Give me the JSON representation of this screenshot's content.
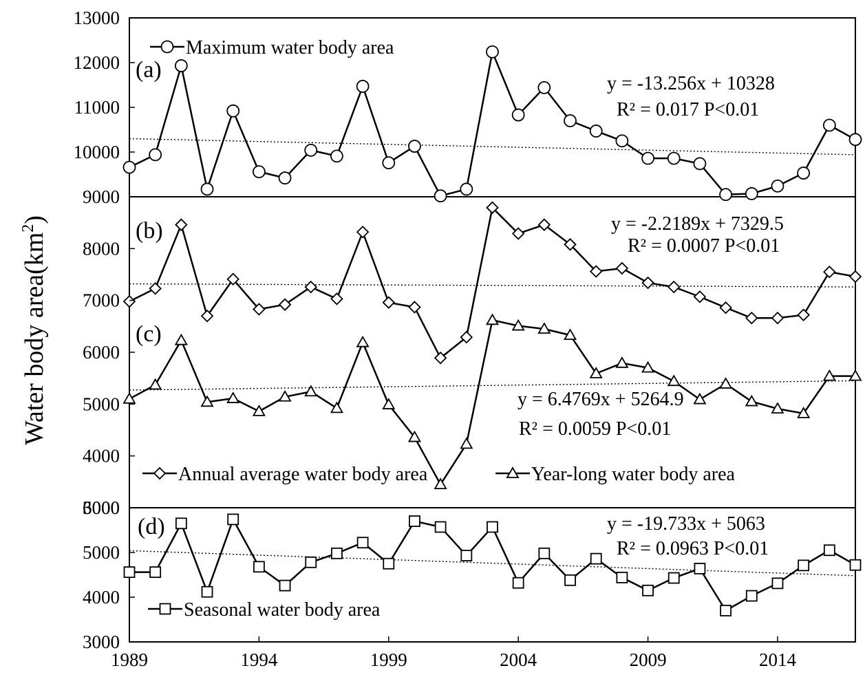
{
  "chart_data": {
    "type": "line",
    "ylabel": "Water body area(km",
    "ylabel_sup": "2",
    "ylabel_close": ")",
    "x_range": [
      1989,
      2017
    ],
    "x_ticks": [
      1989,
      1994,
      1999,
      2004,
      2009,
      2014
    ],
    "x": [
      1989,
      1990,
      1991,
      1992,
      1993,
      1994,
      1995,
      1996,
      1997,
      1998,
      1999,
      2000,
      2001,
      2002,
      2003,
      2004,
      2005,
      2006,
      2007,
      2008,
      2009,
      2010,
      2011,
      2012,
      2013,
      2014,
      2015,
      2016,
      2017
    ],
    "panels": [
      {
        "label": "(a)",
        "ylim": [
          9000,
          13000
        ],
        "y_ticks": [
          9000,
          10000,
          11000,
          12000,
          13000
        ],
        "y_tick_labels": [
          "9000",
          "10000",
          "11000",
          "12000",
          "13000"
        ],
        "series": [
          {
            "name": "Maximum water body area",
            "marker": "circle",
            "values": [
              9660,
              9940,
              11930,
              9170,
              10920,
              9560,
              9420,
              10040,
              9910,
              11470,
              9760,
              10130,
              9020,
              9170,
              12240,
              10830,
              11440,
              10700,
              10470,
              10250,
              9860,
              9860,
              9740,
              9050,
              9070,
              9240,
              9530,
              10600,
              10280
            ],
            "trend": {
              "slope": -13.256,
              "intercept": 10328
            },
            "trend_line": [
              10300,
              9940
            ]
          }
        ],
        "equations": [
          "y = -13.256x + 10328",
          "R² = 0.017    P<0.01"
        ]
      },
      {
        "label": "(b)",
        "label2": "(c)",
        "ylim": [
          3000,
          9000
        ],
        "y_ticks": [
          3000,
          4000,
          5000,
          6000,
          7000,
          8000
        ],
        "y_tick_labels": [
          "3000",
          "4000",
          "5000",
          "6000",
          "7000",
          "8000"
        ],
        "series": [
          {
            "name": "Annual average water body area",
            "marker": "diamond",
            "values": [
              6980,
              7230,
              8460,
              6700,
              7410,
              6830,
              6920,
              7260,
              7030,
              8320,
              6960,
              6870,
              5890,
              6290,
              8790,
              8290,
              8460,
              8080,
              7560,
              7620,
              7340,
              7260,
              7070,
              6860,
              6660,
              6660,
              6720,
              7550,
              7460
            ],
            "trend": {
              "slope": -2.2189,
              "intercept": 7329.5
            },
            "trend_line": [
              7320,
              7260
            ]
          },
          {
            "name": "Year-long water body area",
            "marker": "triangle",
            "values": [
              5100,
              5370,
              6230,
              5040,
              5110,
              4860,
              5140,
              5240,
              4920,
              6190,
              4990,
              4360,
              3450,
              4230,
              6620,
              6510,
              6450,
              6330,
              5590,
              5790,
              5700,
              5440,
              5090,
              5390,
              5050,
              4910,
              4820,
              5540,
              5540
            ],
            "trend": {
              "slope": 6.4769,
              "intercept": 5264.9
            },
            "trend_line": [
              5270,
              5450
            ]
          }
        ],
        "equations": [
          "y = -2.2189x + 7329.5",
          "R² = 0.0007   P<0.01"
        ],
        "equations2": [
          "y = 6.4769x + 5264.9",
          "R² = 0.0059   P<0.01"
        ]
      },
      {
        "label": "(d)",
        "ylim": [
          3000,
          6000
        ],
        "y_ticks": [
          3000,
          4000,
          5000,
          6000
        ],
        "y_tick_labels": [
          "3000",
          "4000",
          "5000",
          "6000"
        ],
        "series": [
          {
            "name": "Seasonal water body area",
            "marker": "square",
            "values": [
              4560,
              4560,
              5650,
              4120,
              5740,
              4680,
              4260,
              4780,
              4980,
              5220,
              4750,
              5700,
              5570,
              4930,
              5570,
              4320,
              4980,
              4380,
              4860,
              4440,
              4150,
              4430,
              4640,
              3700,
              4030,
              4310,
              4710,
              5050,
              4720
            ],
            "trend": {
              "slope": -19.733,
              "intercept": 5063
            },
            "trend_line": [
              5040,
              4480
            ]
          }
        ],
        "equations": [
          "y = -19.733x + 5063",
          "R² = 0.0963  P<0.01"
        ]
      }
    ]
  }
}
